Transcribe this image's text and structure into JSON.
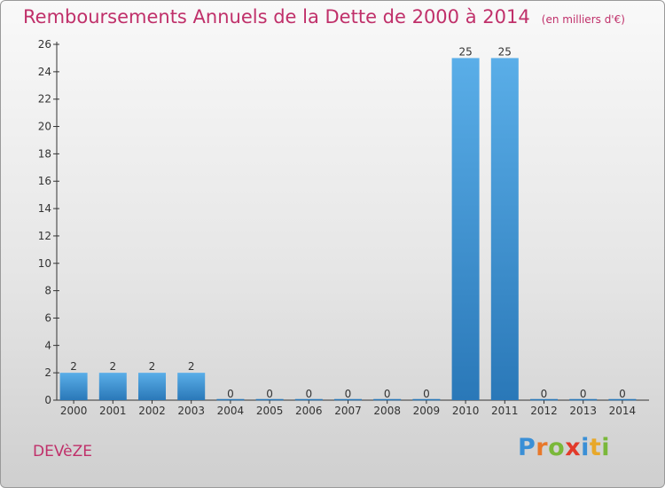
{
  "header": {
    "title": "Remboursements Annuels de la Dette de 2000 à 2014",
    "unit": "(en milliers d'€)"
  },
  "footer": {
    "commune": "DEVèZE",
    "brand": "Proxiti",
    "brand_letters": [
      {
        "ch": "P",
        "color": "#3a8fd6"
      },
      {
        "ch": "r",
        "color": "#e8782a"
      },
      {
        "ch": "o",
        "color": "#7ab83a"
      },
      {
        "ch": "x",
        "color": "#e23a2a"
      },
      {
        "ch": "i",
        "color": "#3a8fd6"
      },
      {
        "ch": "t",
        "color": "#e8a82a"
      },
      {
        "ch": "i",
        "color": "#7ab83a"
      }
    ]
  },
  "colors": {
    "bar_top": "#5aaee8",
    "bar_bottom": "#2a78b8",
    "title": "#c0306a",
    "axis": "#333333"
  },
  "chart_data": {
    "type": "bar",
    "title": "Remboursements Annuels de la Dette de 2000 à 2014",
    "subtitle": "(en milliers d'€)",
    "categories": [
      "2000",
      "2001",
      "2002",
      "2003",
      "2004",
      "2005",
      "2006",
      "2007",
      "2008",
      "2009",
      "2010",
      "2011",
      "2012",
      "2013",
      "2014"
    ],
    "values": [
      2,
      2,
      2,
      2,
      0,
      0,
      0,
      0,
      0,
      0,
      25,
      25,
      0,
      0,
      0
    ],
    "data_labels": [
      "2",
      "2",
      "2",
      "2",
      "0",
      "0",
      "0",
      "0",
      "0",
      "0",
      "25",
      "25",
      "0",
      "0",
      "0"
    ],
    "y_ticks": [
      0,
      2,
      4,
      6,
      8,
      10,
      12,
      14,
      16,
      18,
      20,
      22,
      24,
      26
    ],
    "ylim": [
      0,
      26
    ],
    "xlabel": "",
    "ylabel": "",
    "grid": false,
    "legend": "none"
  }
}
